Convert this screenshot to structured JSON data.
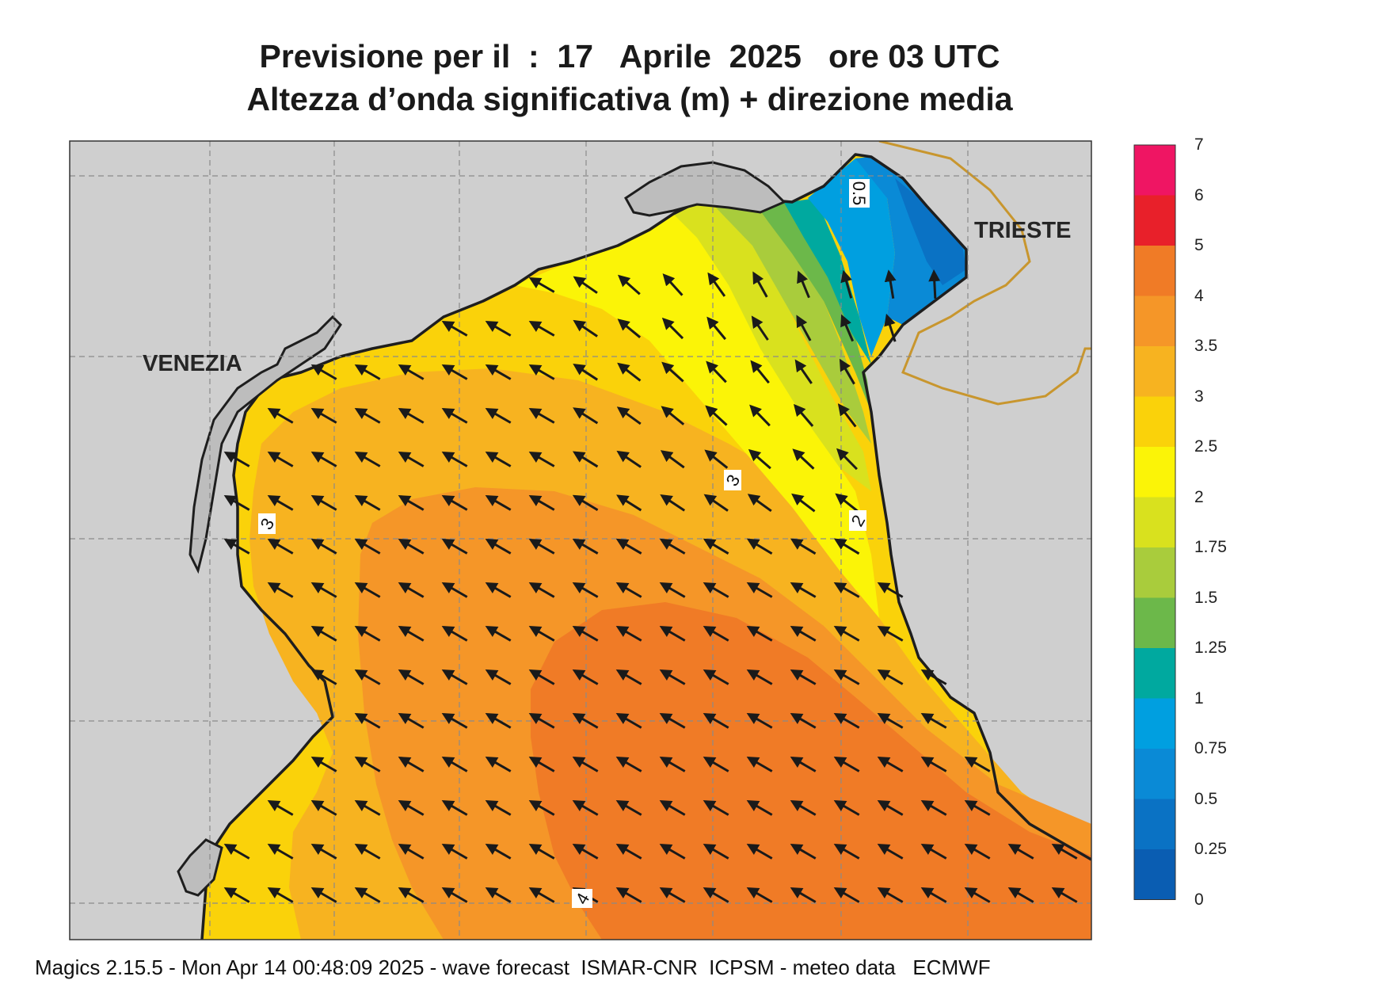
{
  "title_line1": "Previsione per il  :  17   Aprile  2025   ore 03 UTC",
  "title_line2": "Altezza d’onda significativa (m) + direzione media",
  "places": {
    "venezia": "VENEZIA",
    "trieste": "TRIESTE"
  },
  "contour_labels": [
    "3",
    "3",
    "2",
    "0.5",
    "4"
  ],
  "colorbar": {
    "levels": [
      "7",
      "6",
      "5",
      "4",
      "3.5",
      "3",
      "2.5",
      "2",
      "1.75",
      "1.5",
      "1.25",
      "1",
      "0.75",
      "0.5",
      "0.25",
      "0"
    ],
    "colors": [
      "#ef1563",
      "#e8202a",
      "#f07b26",
      "#f59628",
      "#f7b320",
      "#fad20a",
      "#fbf407",
      "#d9e11e",
      "#a9cc3c",
      "#6cb84a",
      "#00a99f",
      "#009fe0",
      "#0a8ad6",
      "#0a72c4",
      "#0a5db2"
    ]
  },
  "footer": "Magics 2.15.5 - Mon Apr 14 00:48:09 2025 - wave forecast  ISMAR-CNR  ICPSM - meteo data   ECMWF",
  "colors": {
    "land": "#cfcfcf",
    "coast": "#1e1e1e",
    "border": "#c8962e",
    "arrow": "#1a1a1a"
  }
}
